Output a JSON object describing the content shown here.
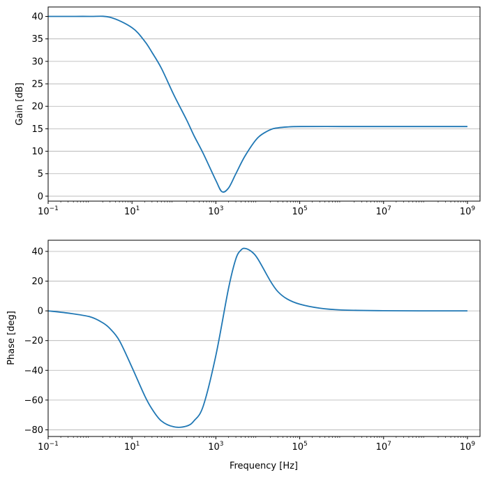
{
  "colors": {
    "line": "#1f77b4",
    "grid": "#b0b0b0",
    "axes": "#000000",
    "background": "#ffffff"
  },
  "chart_data": [
    {
      "type": "line",
      "title": "",
      "xlabel": "",
      "ylabel": "Gain [dB]",
      "xscale": "log",
      "xlim_exp": [
        -1,
        9.3
      ],
      "x_tick_exponents": [
        -1,
        1,
        3,
        5,
        7,
        9
      ],
      "x_tick_labels": [
        "10",
        "10",
        "10",
        "10",
        "10",
        "10"
      ],
      "x_tick_superscripts": [
        "−1",
        "1",
        "3",
        "5",
        "7",
        "9"
      ],
      "ylim": [
        -1.1,
        42.1
      ],
      "y_ticks": [
        0,
        5,
        10,
        15,
        20,
        25,
        30,
        35,
        40
      ],
      "y_tick_labels": [
        "0",
        "5",
        "10",
        "15",
        "20",
        "25",
        "30",
        "35",
        "40"
      ],
      "grid": "horizontal",
      "series": [
        {
          "x": [
            0.1,
            0.3,
            1,
            3,
            10,
            20,
            30,
            50,
            100,
            200,
            300,
            500,
            1000,
            1400,
            2000,
            3000,
            5000,
            10000,
            20000,
            30000,
            50000,
            100000,
            1000000,
            10000000,
            100000000,
            1000000000
          ],
          "y": [
            40.0,
            40.0,
            40.0,
            39.8,
            37.5,
            34.5,
            32.0,
            28.5,
            22.5,
            17.0,
            13.5,
            9.5,
            3.5,
            1.0,
            1.8,
            5.0,
            9.0,
            13.0,
            14.8,
            15.2,
            15.4,
            15.5,
            15.5,
            15.5,
            15.5,
            15.5
          ]
        }
      ]
    },
    {
      "type": "line",
      "title": "",
      "xlabel": "Frequency [Hz]",
      "ylabel": "Phase [deg]",
      "xscale": "log",
      "xlim_exp": [
        -1,
        9.3
      ],
      "x_tick_exponents": [
        -1,
        1,
        3,
        5,
        7,
        9
      ],
      "x_tick_labels": [
        "10",
        "10",
        "10",
        "10",
        "10",
        "10"
      ],
      "x_tick_superscripts": [
        "−1",
        "1",
        "3",
        "5",
        "7",
        "9"
      ],
      "ylim": [
        -84.5,
        47.5
      ],
      "y_ticks": [
        -80,
        -60,
        -40,
        -20,
        0,
        20,
        40
      ],
      "y_tick_labels": [
        "−80",
        "−60",
        "−40",
        "−20",
        "0",
        "20",
        "40"
      ],
      "grid": "horizontal",
      "series": [
        {
          "x": [
            0.1,
            0.3,
            1,
            2,
            3,
            5,
            10,
            20,
            30,
            50,
            100,
            200,
            300,
            500,
            1000,
            2000,
            3000,
            4000,
            5000,
            7000,
            10000,
            20000,
            30000,
            50000,
            100000,
            300000,
            1000000,
            10000000,
            100000000,
            1000000000
          ],
          "y": [
            0.0,
            -1.5,
            -4.0,
            -8.0,
            -12.0,
            -20.0,
            -38.0,
            -57.0,
            -66.0,
            -74.0,
            -78.0,
            -77.5,
            -74.0,
            -64.0,
            -30.0,
            15.0,
            35.0,
            41.0,
            42.0,
            40.0,
            35.0,
            20.0,
            13.0,
            8.0,
            4.5,
            1.8,
            0.6,
            0.1,
            0.0,
            0.0
          ]
        }
      ]
    }
  ]
}
